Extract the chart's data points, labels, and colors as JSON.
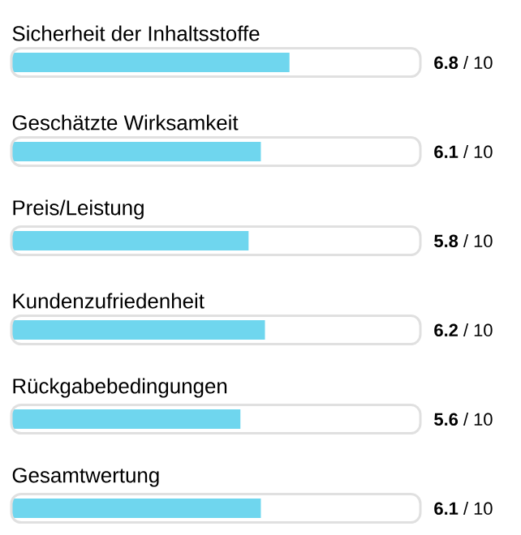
{
  "chart_data": {
    "type": "bar",
    "orientation": "horizontal",
    "categories": [
      "Sicherheit der Inhaltsstoffe",
      "Geschätzte Wirksamkeit",
      "Preis/Leistung",
      "Kundenzufriedenheit",
      "Rückgabebedingungen",
      "Gesamtwertung"
    ],
    "values": [
      6.8,
      6.1,
      5.8,
      6.2,
      5.6,
      6.1
    ],
    "value_labels": [
      "**6.8** / 10",
      "**6.1** / 10",
      "**5.8** / 10",
      "**6.2** / 10",
      "**5.6** / 10",
      "**6.1** / 10"
    ],
    "color": "#6fd6ee",
    "xlim": [
      0,
      10
    ]
  }
}
